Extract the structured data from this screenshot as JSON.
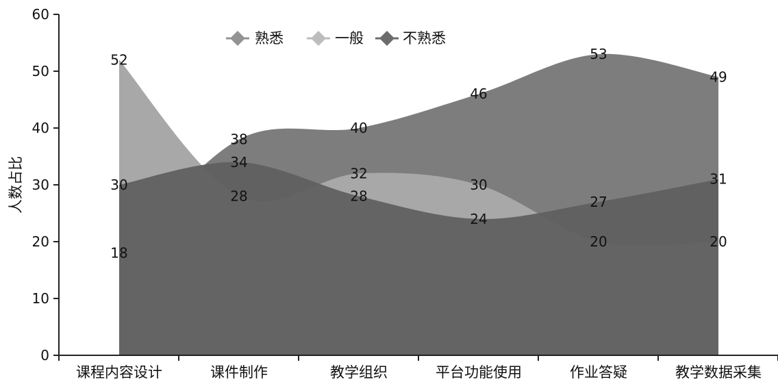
{
  "chart_data": {
    "type": "area",
    "title": "",
    "xlabel": "",
    "ylabel": "人数占比",
    "ylim": [
      0,
      60
    ],
    "yticks": [
      0,
      10,
      20,
      30,
      40,
      50,
      60
    ],
    "categories": [
      "课程内容设计",
      "课件制作",
      "教学组织",
      "平台功能使用",
      "作业答疑",
      "教学数据采集"
    ],
    "legend_position": "top-center",
    "grid": false,
    "series": [
      {
        "name": "熟悉",
        "values": [
          18,
          38,
          40,
          46,
          53,
          49
        ],
        "color": "#7d7d7d",
        "marker_color": "#939393"
      },
      {
        "name": "一般",
        "values": [
          52,
          28,
          32,
          30,
          20,
          20
        ],
        "color": "#a8a8a8",
        "marker_color": "#bdbdbd"
      },
      {
        "name": "不熟悉",
        "values": [
          30,
          34,
          28,
          24,
          27,
          31
        ],
        "color": "#5e5e5e",
        "marker_color": "#6c6c6c"
      }
    ]
  }
}
